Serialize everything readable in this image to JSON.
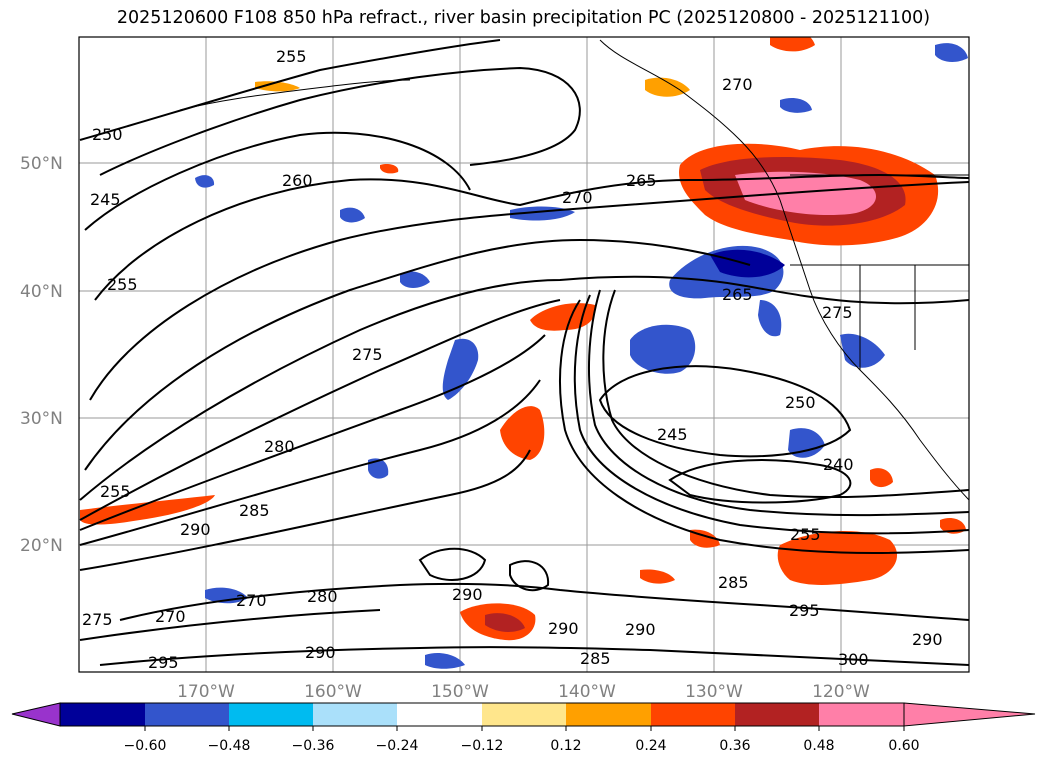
{
  "title": "2025120600 F108 850 hPa refract., river basin precipitation PC (2025120800 - 2025121100)",
  "map": {
    "lat_labels": [
      "50°N",
      "40°N",
      "30°N",
      "20°N"
    ],
    "lon_labels": [
      "170°W",
      "160°W",
      "150°W",
      "140°W",
      "130°W",
      "120°W"
    ],
    "contour_labels": [
      "255",
      "260",
      "250",
      "245",
      "255",
      "270",
      "265",
      "270",
      "275",
      "280",
      "285",
      "290",
      "255",
      "270",
      "270",
      "275",
      "280",
      "290",
      "295",
      "290",
      "290",
      "290",
      "285",
      "285",
      "295",
      "255",
      "250",
      "245",
      "240",
      "265",
      "275",
      "300",
      "290"
    ]
  },
  "colorbar": {
    "ticks": [
      "−0.60",
      "−0.48",
      "−0.36",
      "−0.24",
      "−0.12",
      "0.12",
      "0.24",
      "0.36",
      "0.48",
      "0.60"
    ],
    "colors": [
      "#9933cc",
      "#000099",
      "#3355cc",
      "#00bbf0",
      "#aae0fa",
      "#ffffff",
      "#ffe68c",
      "#ffa000",
      "#ff4400",
      "#b22222",
      "#ff7fa8"
    ]
  }
}
